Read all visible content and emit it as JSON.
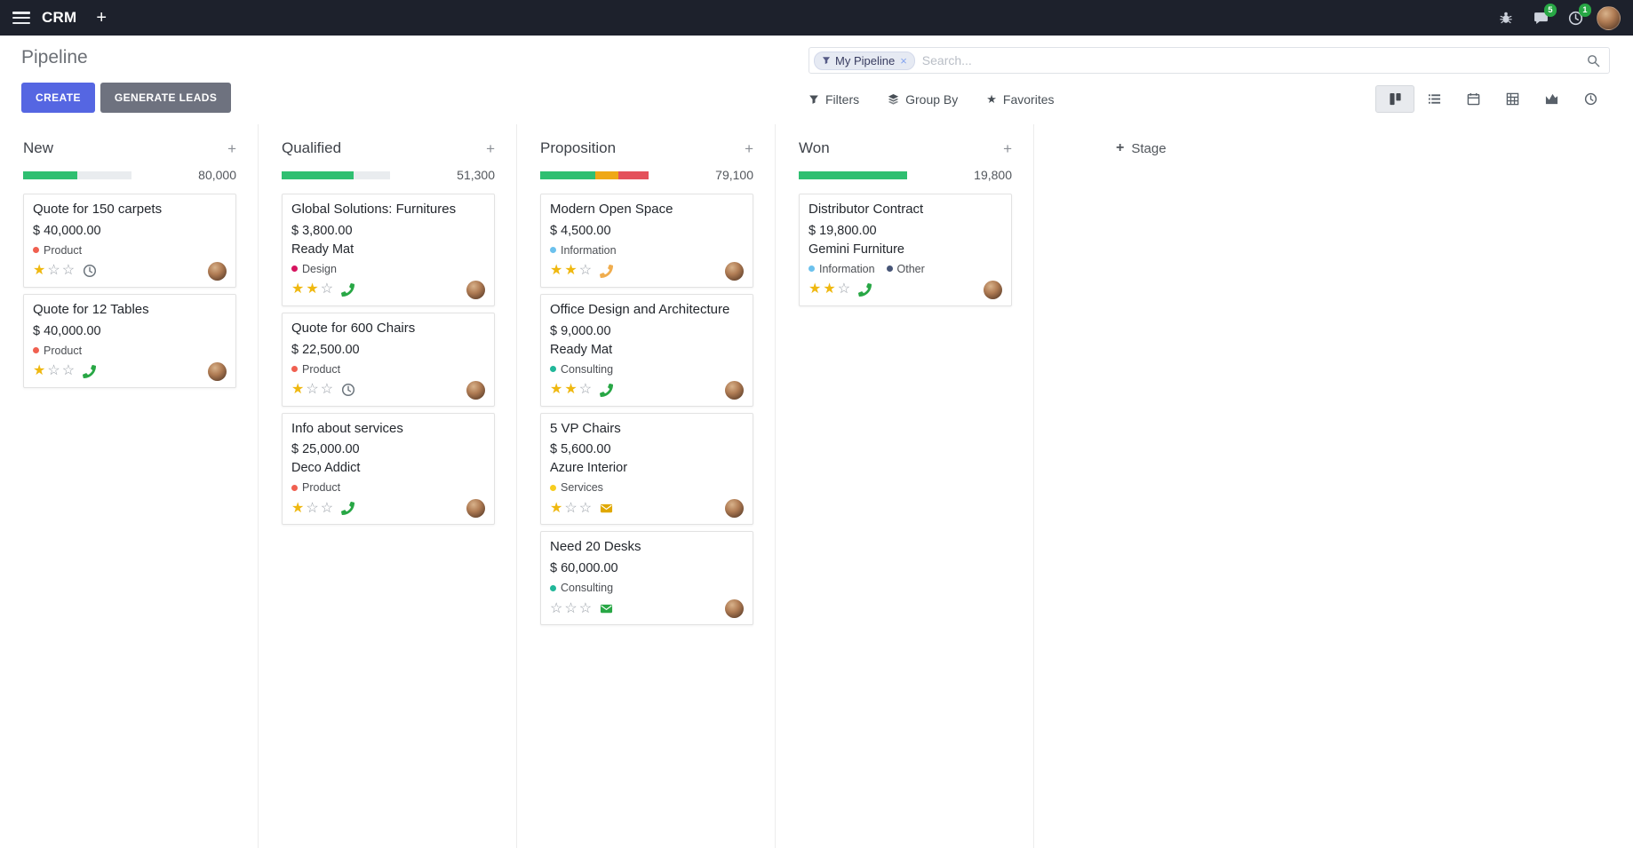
{
  "topbar": {
    "app_name": "CRM",
    "systray": {
      "messages_badge": "5",
      "activities_badge": "1"
    }
  },
  "control_panel": {
    "title": "Pipeline",
    "buttons": {
      "create": "CREATE",
      "generate_leads": "GENERATE LEADS"
    },
    "search": {
      "facet_label": "My Pipeline",
      "placeholder": "Search..."
    },
    "filter_menus": {
      "filters": "Filters",
      "group_by": "Group By",
      "favorites": "Favorites"
    }
  },
  "board": {
    "add_stage": "Stage",
    "columns": [
      {
        "name": "New",
        "counter": "80,000",
        "progress": [
          {
            "color": "#2fbf71",
            "pct": 50
          },
          {
            "color": "#e9ecef",
            "pct": 50
          }
        ],
        "cards": [
          {
            "title": "Quote for 150 carpets",
            "amount": "$ 40,000.00",
            "partner": "",
            "tags": [
              {
                "label": "Product",
                "color": "#f06050"
              }
            ],
            "stars": 1,
            "activity": {
              "type": "clock",
              "color": "#6c757d"
            }
          },
          {
            "title": "Quote for 12 Tables",
            "amount": "$ 40,000.00",
            "partner": "",
            "tags": [
              {
                "label": "Product",
                "color": "#f06050"
              }
            ],
            "stars": 1,
            "activity": {
              "type": "phone",
              "color": "#28a745"
            }
          }
        ]
      },
      {
        "name": "Qualified",
        "counter": "51,300",
        "progress": [
          {
            "color": "#2fbf71",
            "pct": 66
          },
          {
            "color": "#e9ecef",
            "pct": 34
          }
        ],
        "cards": [
          {
            "title": "Global Solutions: Furnitures",
            "amount": "$ 3,800.00",
            "partner": "Ready Mat",
            "tags": [
              {
                "label": "Design",
                "color": "#d6145f"
              }
            ],
            "stars": 2,
            "activity": {
              "type": "phone",
              "color": "#28a745"
            }
          },
          {
            "title": "Quote for 600 Chairs",
            "amount": "$ 22,500.00",
            "partner": "",
            "tags": [
              {
                "label": "Product",
                "color": "#f06050"
              }
            ],
            "stars": 1,
            "activity": {
              "type": "clock",
              "color": "#6c757d"
            }
          },
          {
            "title": "Info about services",
            "amount": "$ 25,000.00",
            "partner": "Deco Addict",
            "tags": [
              {
                "label": "Product",
                "color": "#f06050"
              }
            ],
            "stars": 1,
            "activity": {
              "type": "phone",
              "color": "#28a745"
            }
          }
        ]
      },
      {
        "name": "Proposition",
        "counter": "79,100",
        "progress": [
          {
            "color": "#2fbf71",
            "pct": 51
          },
          {
            "color": "#efa816",
            "pct": 21
          },
          {
            "color": "#e4515b",
            "pct": 28
          }
        ],
        "cards": [
          {
            "title": "Modern Open Space",
            "amount": "$ 4,500.00",
            "partner": "",
            "tags": [
              {
                "label": "Information",
                "color": "#6cc1ed"
              }
            ],
            "stars": 2,
            "activity": {
              "type": "phone",
              "color": "#f0ad4e"
            }
          },
          {
            "title": "Office Design and Architecture",
            "amount": "$ 9,000.00",
            "partner": "Ready Mat",
            "tags": [
              {
                "label": "Consulting",
                "color": "#21b799"
              }
            ],
            "stars": 2,
            "activity": {
              "type": "phone",
              "color": "#28a745"
            }
          },
          {
            "title": "5 VP Chairs",
            "amount": "$ 5,600.00",
            "partner": "Azure Interior",
            "tags": [
              {
                "label": "Services",
                "color": "#f7cd1f"
              }
            ],
            "stars": 1,
            "activity": {
              "type": "envelope",
              "color": "#e0a800"
            }
          },
          {
            "title": "Need 20 Desks",
            "amount": "$ 60,000.00",
            "partner": "",
            "tags": [
              {
                "label": "Consulting",
                "color": "#21b799"
              }
            ],
            "stars": 0,
            "activity": {
              "type": "envelope",
              "color": "#28a745"
            }
          }
        ]
      },
      {
        "name": "Won",
        "counter": "19,800",
        "progress": [
          {
            "color": "#2fbf71",
            "pct": 100
          }
        ],
        "cards": [
          {
            "title": "Distributor Contract",
            "amount": "$ 19,800.00",
            "partner": "Gemini Furniture",
            "tags": [
              {
                "label": "Information",
                "color": "#6cc1ed"
              },
              {
                "label": "Other",
                "color": "#475577"
              }
            ],
            "stars": 2,
            "activity": {
              "type": "phone",
              "color": "#28a745"
            }
          }
        ]
      }
    ]
  },
  "icons": {
    "plus": "+",
    "close": "×",
    "star_filled": "★",
    "star_empty": "☆"
  },
  "colors": {
    "topbar_bg": "#1d212c",
    "primary": "#5566e2",
    "secondary": "#6e727f",
    "success": "#28a745",
    "star": "#efb810"
  }
}
